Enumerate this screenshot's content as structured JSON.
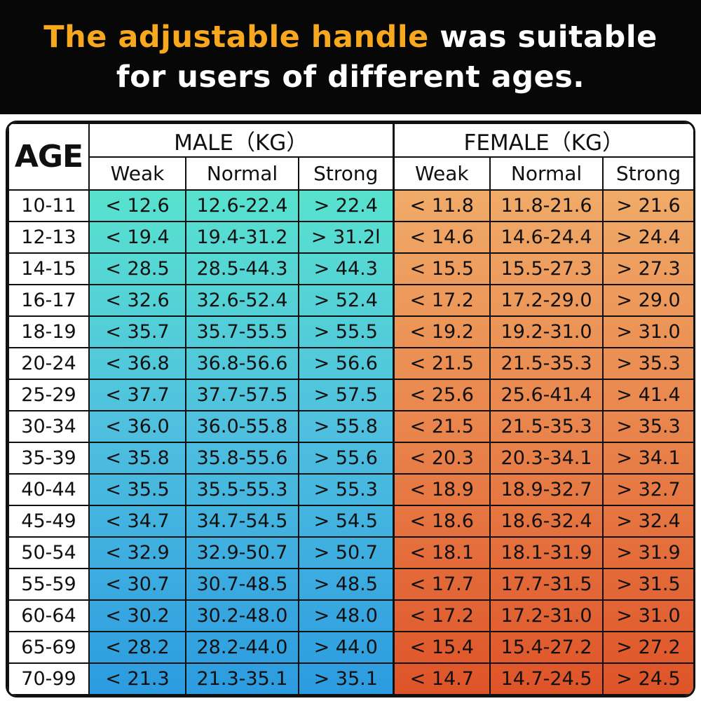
{
  "title": {
    "highlight": "The adjustable handle",
    "rest": " was suitable",
    "line2": "for users of different ages."
  },
  "colors": {
    "banner_bg": "#070707",
    "title_accent": "#F7A81F",
    "title_text": "#FFFFFF",
    "male_gradient_top": "#58E2CE",
    "male_gradient_mid": "#4FC0DF",
    "male_gradient_bottom": "#2C9BE0",
    "female_gradient_top": "#F0AB68",
    "female_gradient_mid": "#E9854C",
    "female_gradient_bottom": "#DE5328",
    "grid_line": "#101010"
  },
  "chart_data": {
    "type": "table",
    "title": "The adjustable handle was suitable for users of different ages.",
    "age_header": "AGE",
    "male_header": "MALE（KG）",
    "female_header": "FEMALE（KG）",
    "sub_headers": [
      "Weak",
      "Normal",
      "Strong"
    ],
    "rows": [
      {
        "age": "10-11",
        "male": [
          "< 12.6",
          "12.6-22.4",
          "> 22.4"
        ],
        "female": [
          "< 11.8",
          "11.8-21.6",
          "> 21.6"
        ]
      },
      {
        "age": "12-13",
        "male": [
          "< 19.4",
          "19.4-31.2",
          "> 31.2l"
        ],
        "female": [
          "< 14.6",
          "14.6-24.4",
          "> 24.4"
        ]
      },
      {
        "age": "14-15",
        "male": [
          "< 28.5",
          "28.5-44.3",
          "> 44.3"
        ],
        "female": [
          "< 15.5",
          "15.5-27.3",
          "> 27.3"
        ]
      },
      {
        "age": "16-17",
        "male": [
          "< 32.6",
          "32.6-52.4",
          "> 52.4"
        ],
        "female": [
          "< 17.2",
          "17.2-29.0",
          "> 29.0"
        ]
      },
      {
        "age": "18-19",
        "male": [
          "< 35.7",
          "35.7-55.5",
          "> 55.5"
        ],
        "female": [
          "< 19.2",
          "19.2-31.0",
          "> 31.0"
        ]
      },
      {
        "age": "20-24",
        "male": [
          "< 36.8",
          "36.8-56.6",
          "> 56.6"
        ],
        "female": [
          "< 21.5",
          "21.5-35.3",
          "> 35.3"
        ]
      },
      {
        "age": "25-29",
        "male": [
          "< 37.7",
          "37.7-57.5",
          "> 57.5"
        ],
        "female": [
          "< 25.6",
          "25.6-41.4",
          "> 41.4"
        ]
      },
      {
        "age": "30-34",
        "male": [
          "< 36.0",
          "36.0-55.8",
          "> 55.8"
        ],
        "female": [
          "< 21.5",
          "21.5-35.3",
          "> 35.3"
        ]
      },
      {
        "age": "35-39",
        "male": [
          "< 35.8",
          "35.8-55.6",
          "> 55.6"
        ],
        "female": [
          "< 20.3",
          "20.3-34.1",
          "> 34.1"
        ]
      },
      {
        "age": "40-44",
        "male": [
          "< 35.5",
          "35.5-55.3",
          "> 55.3"
        ],
        "female": [
          "< 18.9",
          "18.9-32.7",
          "> 32.7"
        ]
      },
      {
        "age": "45-49",
        "male": [
          "< 34.7",
          "34.7-54.5",
          "> 54.5"
        ],
        "female": [
          "< 18.6",
          "18.6-32.4",
          "> 32.4"
        ]
      },
      {
        "age": "50-54",
        "male": [
          "< 32.9",
          "32.9-50.7",
          "> 50.7"
        ],
        "female": [
          "< 18.1",
          "18.1-31.9",
          "> 31.9"
        ]
      },
      {
        "age": "55-59",
        "male": [
          "< 30.7",
          "30.7-48.5",
          "> 48.5"
        ],
        "female": [
          "< 17.7",
          "17.7-31.5",
          "> 31.5"
        ]
      },
      {
        "age": "60-64",
        "male": [
          "< 30.2",
          "30.2-48.0",
          "> 48.0"
        ],
        "female": [
          "< 17.2",
          "17.2-31.0",
          "> 31.0"
        ]
      },
      {
        "age": "65-69",
        "male": [
          "< 28.2",
          "28.2-44.0",
          "> 44.0"
        ],
        "female": [
          "< 15.4",
          "15.4-27.2",
          "> 27.2"
        ]
      },
      {
        "age": "70-99",
        "male": [
          "< 21.3",
          "21.3-35.1",
          "> 35.1"
        ],
        "female": [
          "< 14.7",
          "14.7-24.5",
          "> 24.5"
        ]
      }
    ]
  }
}
